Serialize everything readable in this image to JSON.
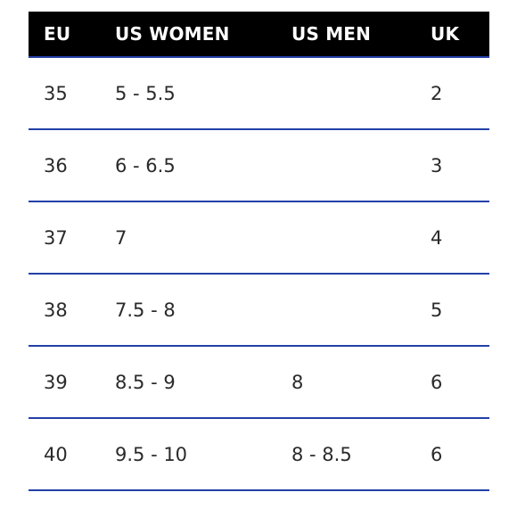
{
  "table": {
    "headers": [
      "EU",
      "US WOMEN",
      "US MEN",
      "UK"
    ],
    "rows": [
      [
        "35",
        "5 - 5.5",
        "",
        "2"
      ],
      [
        "36",
        "6 - 6.5",
        "",
        "3"
      ],
      [
        "37",
        "7",
        "",
        "4"
      ],
      [
        "38",
        "7.5 - 8",
        "",
        "5"
      ],
      [
        "39",
        "8.5 - 9",
        "8",
        "6"
      ],
      [
        "40",
        "9.5 - 10",
        "8 - 8.5",
        "6"
      ]
    ]
  },
  "colors": {
    "header_background": "#000000",
    "header_text": "#ffffff",
    "divider": "#2340a8",
    "body_text": "#2a2a2a"
  }
}
